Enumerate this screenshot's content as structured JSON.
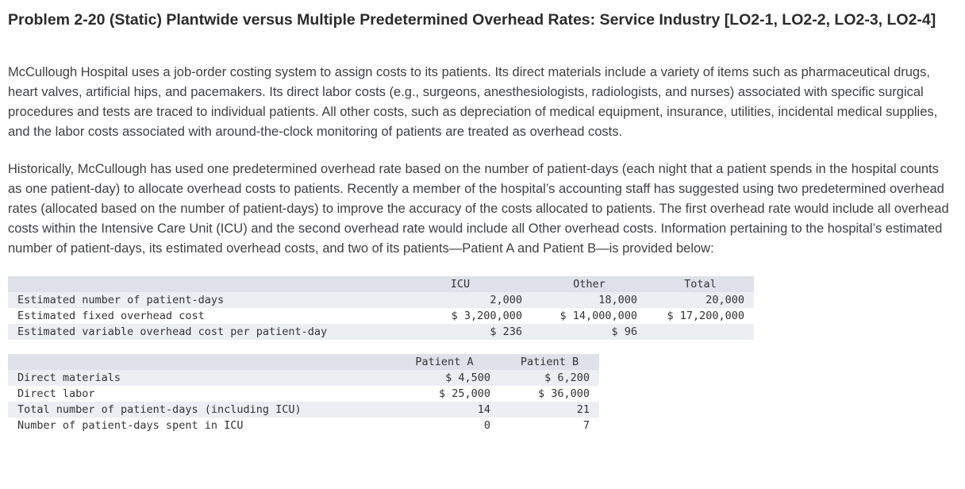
{
  "page": {
    "title": "Problem 2-20 (Static) Plantwide versus Multiple Predetermined Overhead Rates: Service Industry [LO2-1, LO2-2, LO2-3, LO2-4]",
    "paragraphs": [
      "McCullough Hospital uses a job-order costing system to assign costs to its patients. Its direct materials include a variety of items such as pharmaceutical drugs, heart valves, artificial hips, and pacemakers. Its direct labor costs (e.g., surgeons, anesthesiologists, radiologists, and nurses) associated with specific surgical procedures and tests are traced to individual patients. All other costs, such as depreciation of medical equipment, insurance, utilities, incidental medical supplies, and the labor costs associated with around-the-clock monitoring of patients are treated as overhead costs.",
      "Historically, McCullough has used one predetermined overhead rate based on the number of patient-days (each night that a patient spends in the hospital counts as one patient-day) to allocate overhead costs to patients. Recently a member of the hospital’s accounting staff has suggested using two predetermined overhead rates (allocated based on the number of patient-days) to improve the accuracy of the costs allocated to patients. The first overhead rate would include all overhead costs within the Intensive Care Unit (ICU) and the second overhead rate would include all Other overhead costs. Information pertaining to the hospital’s estimated number of patient-days, its estimated overhead costs, and two of its patients—Patient A and Patient B—is provided below:"
    ]
  },
  "overhead_table": {
    "col_headers": [
      "ICU",
      "Other",
      "Total"
    ],
    "rows": [
      {
        "label": "Estimated number of patient-days",
        "icu": "2,000",
        "other": "18,000",
        "total": "20,000"
      },
      {
        "label": "Estimated fixed overhead cost",
        "icu": "$ 3,200,000",
        "other": "$ 14,000,000",
        "total": "$ 17,200,000"
      },
      {
        "label": "Estimated variable overhead cost per patient-day",
        "icu": "$ 236",
        "other": "$ 96",
        "total": ""
      }
    ]
  },
  "patient_table": {
    "col_headers": [
      "Patient A",
      "Patient B"
    ],
    "rows": [
      {
        "label": "Direct materials",
        "a": "$ 4,500",
        "b": "$ 6,200"
      },
      {
        "label": "Direct labor",
        "a": "$ 25,000",
        "b": "$ 36,000"
      },
      {
        "label": "Total number of patient-days (including ICU)",
        "a": "14",
        "b": "21"
      },
      {
        "label": "Number of patient-days spent in ICU",
        "a": "0",
        "b": "7"
      }
    ]
  },
  "colors": {
    "table_header_bg": "#dfe1ea",
    "table_stripe_bg": "#eceef4",
    "body_text": "#3e4043",
    "title_text": "#2b2b2b"
  }
}
